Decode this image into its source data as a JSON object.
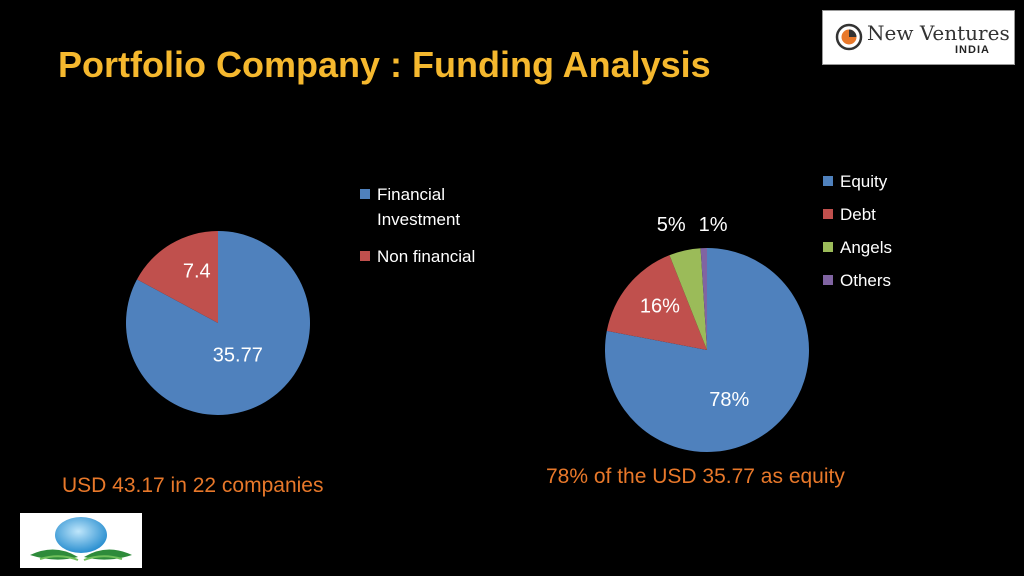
{
  "title": "Portfolio Company : Funding Analysis",
  "logo_top": {
    "name": "New Ventures",
    "sub": "INDIA"
  },
  "logo_bottom": {
    "icon": "globe-with-leaves-logo"
  },
  "caption_left": "USD 43.17 in 22 companies",
  "caption_right": "78% of the USD 35.77 as equity",
  "chart_data": [
    {
      "type": "pie",
      "title": "",
      "categories": [
        "Financial Investment",
        "Non financial"
      ],
      "values": [
        35.77,
        7.4
      ],
      "data_labels": [
        "35.77",
        "7.4"
      ],
      "colors": [
        "#4F81BD",
        "#C0504D"
      ],
      "legend_position": "right"
    },
    {
      "type": "pie",
      "title": "",
      "categories": [
        "Equity",
        "Debt",
        "Angels",
        "Others"
      ],
      "values": [
        78,
        16,
        5,
        1
      ],
      "data_labels": [
        "78%",
        "16%",
        "5%",
        "1%"
      ],
      "colors": [
        "#4F81BD",
        "#C0504D",
        "#9BBB59",
        "#8064A2"
      ],
      "legend_position": "right"
    }
  ]
}
